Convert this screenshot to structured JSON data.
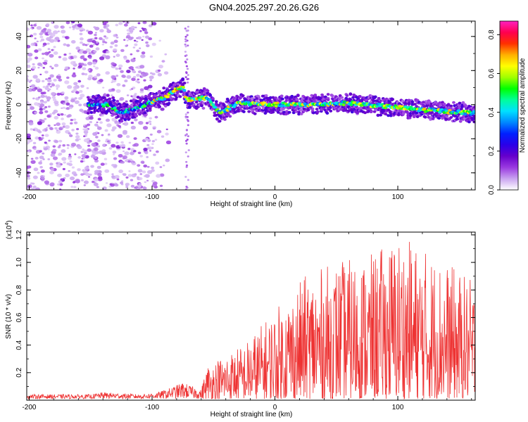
{
  "title": "GN04.2025.297.20.26.G26",
  "chart_data": [
    {
      "type": "heatmap",
      "xlabel": "Height of straight line (km)",
      "ylabel": "Frequency (Hz)",
      "xlim": [
        -202,
        163
      ],
      "ylim": [
        -50,
        49
      ],
      "xticks": [
        -200,
        -100,
        0,
        100
      ],
      "xtick_labels": [
        "-200",
        "-100",
        "0",
        "100"
      ],
      "yticks": [
        -40,
        -20,
        0,
        20,
        40
      ],
      "ytick_labels": [
        "-40",
        "-20",
        "0",
        "20",
        "40"
      ],
      "colorbar": {
        "label": "Normalized spectral amplitude",
        "range": [
          0,
          0.87
        ],
        "ticks": [
          0,
          0.2,
          0.4,
          0.6,
          0.8
        ],
        "tick_labels": [
          "0.0",
          "0.2",
          "0.4",
          "0.6",
          "0.8"
        ],
        "colors": [
          "#ffffff",
          "#c9a3f0",
          "#9a3ae0",
          "#6600cc",
          "#2a00e8",
          "#0020ff",
          "#0088ff",
          "#00e0ff",
          "#00ff9a",
          "#00ff00",
          "#a0ff00",
          "#ffff00",
          "#ffb000",
          "#ff3000",
          "#ff0050",
          "#ff20c0"
        ]
      },
      "ridge_track": [
        {
          "x": -150,
          "f": 0
        },
        {
          "x": -135,
          "f": 0
        },
        {
          "x": -125,
          "f": -5
        },
        {
          "x": -110,
          "f": -1
        },
        {
          "x": -90,
          "f": 4
        },
        {
          "x": -75,
          "f": 11
        },
        {
          "x": -72,
          "f": 3
        },
        {
          "x": -55,
          "f": 4
        },
        {
          "x": -45,
          "f": -5
        },
        {
          "x": -30,
          "f": 1
        },
        {
          "x": 0,
          "f": 0
        },
        {
          "x": 30,
          "f": 0
        },
        {
          "x": 60,
          "f": 1
        },
        {
          "x": 90,
          "f": -1
        },
        {
          "x": 120,
          "f": -3
        },
        {
          "x": 163,
          "f": -5
        }
      ]
    },
    {
      "type": "line",
      "xlabel": "Height of straight line (km)",
      "ylabel": "SNR (10 * v/v)",
      "y_multiplier": "(x10",
      "y_multiplier_exp": "4",
      "y_multiplier_close": ")",
      "xlim": [
        -202,
        163
      ],
      "ylim": [
        0,
        1.22
      ],
      "xticks": [
        -200,
        -100,
        0,
        100
      ],
      "xtick_labels": [
        "-200",
        "-100",
        "0",
        "100"
      ],
      "yticks": [
        0.2,
        0.4,
        0.6,
        0.8,
        1.0,
        1.2
      ],
      "ytick_labels": [
        "0.2",
        "0.4",
        "0.6",
        "0.8",
        "1.0",
        "1.2"
      ],
      "color": "#ee3333",
      "envelope": [
        {
          "x": -202,
          "y": 0.04
        },
        {
          "x": -150,
          "y": 0.04
        },
        {
          "x": -140,
          "y": 0.06
        },
        {
          "x": -110,
          "y": 0.04
        },
        {
          "x": -95,
          "y": 0.06
        },
        {
          "x": -85,
          "y": 0.1
        },
        {
          "x": -75,
          "y": 0.15
        },
        {
          "x": -60,
          "y": 0.08
        },
        {
          "x": -55,
          "y": 0.25
        },
        {
          "x": -40,
          "y": 0.33
        },
        {
          "x": -25,
          "y": 0.4
        },
        {
          "x": -10,
          "y": 0.55
        },
        {
          "x": 5,
          "y": 0.7
        },
        {
          "x": 25,
          "y": 0.9
        },
        {
          "x": 50,
          "y": 1.0
        },
        {
          "x": 80,
          "y": 1.05
        },
        {
          "x": 100,
          "y": 1.2
        },
        {
          "x": 130,
          "y": 1.05
        },
        {
          "x": 163,
          "y": 0.85
        }
      ]
    }
  ]
}
